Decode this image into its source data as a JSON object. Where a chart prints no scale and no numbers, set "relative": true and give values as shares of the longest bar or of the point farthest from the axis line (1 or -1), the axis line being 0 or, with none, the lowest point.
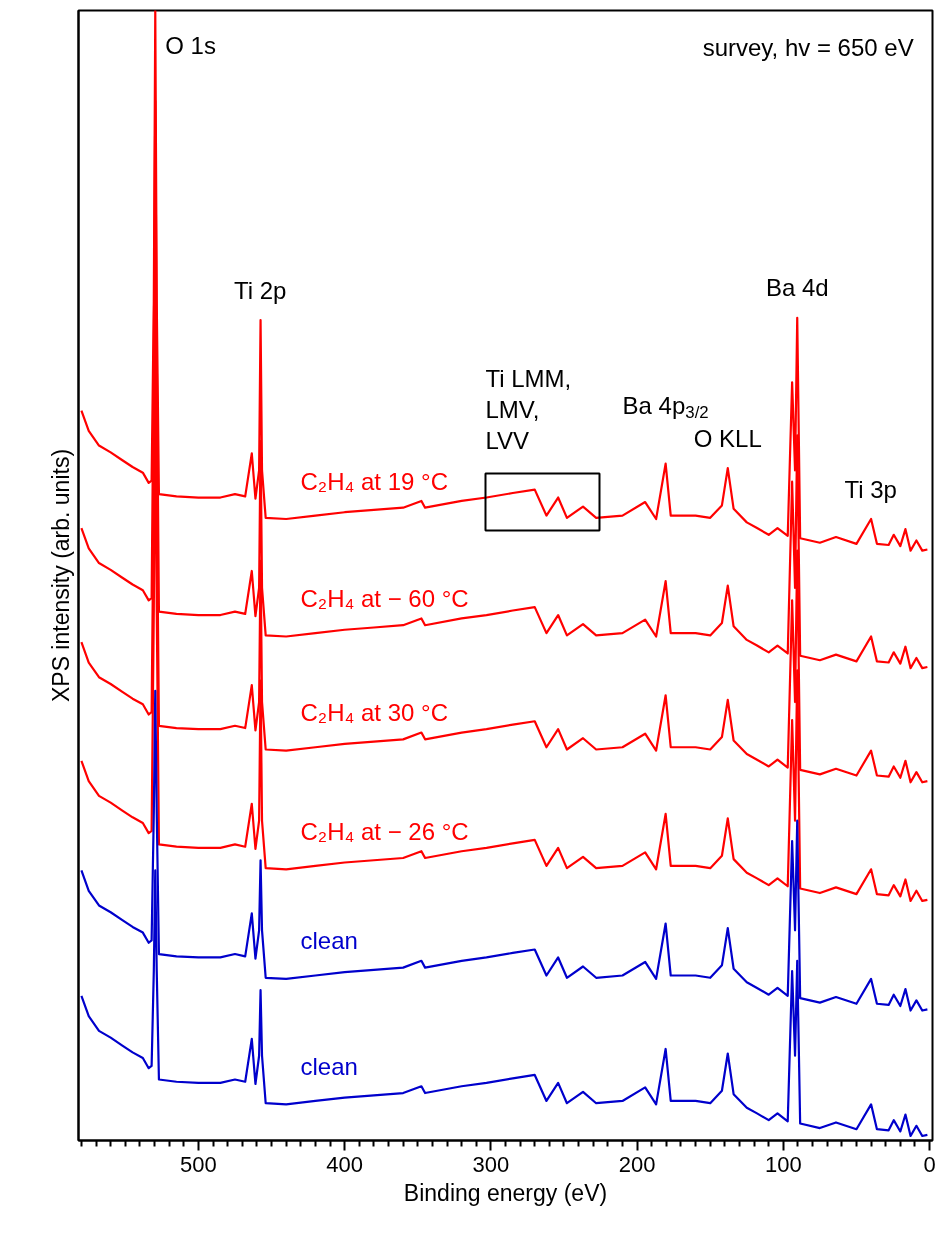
{
  "chart_data": {
    "type": "line",
    "relative": true,
    "xlabel": "Binding energy (eV)",
    "ylabel": "XPS intensity (arb. units)",
    "tick_labels": "x",
    "xlim": [
      582,
      -2
    ],
    "xticks": [
      0,
      100,
      200,
      300,
      400,
      500,
      {
        "value": 10,
        "label": null
      },
      {
        "value": 20,
        "label": null
      },
      {
        "value": 30,
        "label": null
      },
      {
        "value": 40,
        "label": null
      },
      {
        "value": 50,
        "label": null
      },
      {
        "value": 60,
        "label": null
      },
      {
        "value": 70,
        "label": null
      },
      {
        "value": 80,
        "label": null
      },
      {
        "value": 90,
        "label": null
      },
      {
        "value": 110,
        "label": null
      },
      {
        "value": 120,
        "label": null
      },
      {
        "value": 130,
        "label": null
      },
      {
        "value": 140,
        "label": null
      },
      {
        "value": 150,
        "label": null
      },
      {
        "value": 160,
        "label": null
      },
      {
        "value": 170,
        "label": null
      },
      {
        "value": 180,
        "label": null
      },
      {
        "value": 190,
        "label": null
      },
      {
        "value": 210,
        "label": null
      },
      {
        "value": 220,
        "label": null
      },
      {
        "value": 230,
        "label": null
      },
      {
        "value": 240,
        "label": null
      },
      {
        "value": 250,
        "label": null
      },
      {
        "value": 260,
        "label": null
      },
      {
        "value": 270,
        "label": null
      },
      {
        "value": 280,
        "label": null
      },
      {
        "value": 290,
        "label": null
      },
      {
        "value": 310,
        "label": null
      },
      {
        "value": 320,
        "label": null
      },
      {
        "value": 330,
        "label": null
      },
      {
        "value": 340,
        "label": null
      },
      {
        "value": 350,
        "label": null
      },
      {
        "value": 360,
        "label": null
      },
      {
        "value": 370,
        "label": null
      },
      {
        "value": 380,
        "label": null
      },
      {
        "value": 390,
        "label": null
      },
      {
        "value": 410,
        "label": null
      },
      {
        "value": 420,
        "label": null
      },
      {
        "value": 430,
        "label": null
      },
      {
        "value": 440,
        "label": null
      },
      {
        "value": 450,
        "label": null
      },
      {
        "value": 460,
        "label": null
      },
      {
        "value": 470,
        "label": null
      },
      {
        "value": 480,
        "label": null
      },
      {
        "value": 490,
        "label": null
      },
      {
        "value": 510,
        "label": null
      },
      {
        "value": 520,
        "label": null
      },
      {
        "value": 530,
        "label": null
      },
      {
        "value": 540,
        "label": null
      },
      {
        "value": 550,
        "label": null
      },
      {
        "value": 560,
        "label": null
      },
      {
        "value": 570,
        "label": null
      },
      {
        "value": 580,
        "label": null
      }
    ],
    "x": [
      580,
      575,
      568,
      560,
      552,
      545,
      538,
      534,
      532,
      530.5,
      529.5,
      528.5,
      527,
      515,
      500,
      485,
      475,
      468,
      463.5,
      461,
      458.5,
      457.5,
      456.5,
      454,
      440,
      420,
      400,
      380,
      360,
      347.5,
      345,
      320,
      303,
      285,
      270,
      262,
      254,
      248,
      237,
      228,
      210,
      194.5,
      187,
      180.5,
      177,
      160,
      150,
      142,
      138,
      134,
      125,
      118,
      110,
      104,
      97,
      94,
      92,
      90.5,
      88.5,
      75,
      64,
      50,
      40,
      36,
      28,
      24.5,
      20,
      16.5,
      13,
      9,
      5,
      1.5
    ],
    "series": [
      {
        "name": "C₂H₄ at 19 °C",
        "color": "#ff0000",
        "values": [
          0.646,
          0.628,
          0.615,
          0.609,
          0.602,
          0.596,
          0.591,
          0.582,
          0.584,
          0.743,
          1,
          0.743,
          0.572,
          0.57,
          0.569,
          0.569,
          0.572,
          0.57,
          0.608,
          0.568,
          0.593,
          0.726,
          0.593,
          0.551,
          0.55,
          0.553,
          0.556,
          0.558,
          0.56,
          0.566,
          0.56,
          0.566,
          0.569,
          0.573,
          0.576,
          0.553,
          0.569,
          0.551,
          0.561,
          0.551,
          0.553,
          0.565,
          0.55,
          0.599,
          0.553,
          0.553,
          0.551,
          0.562,
          0.595,
          0.559,
          0.547,
          0.542,
          0.536,
          0.542,
          0.535,
          0.671,
          0.593,
          0.728,
          0.533,
          0.529,
          0.534,
          0.528,
          0.55,
          0.528,
          0.527,
          0.536,
          0.526,
          0.541,
          0.522,
          0.531,
          0.522,
          0.523
        ]
      },
      {
        "name": "C₂H₄ at − 60 °C",
        "color": "#ff0000",
        "values": [
          0.542,
          0.524,
          0.511,
          0.505,
          0.498,
          0.492,
          0.487,
          0.478,
          0.48,
          0.7,
          0.92,
          0.7,
          0.468,
          0.466,
          0.465,
          0.465,
          0.468,
          0.466,
          0.504,
          0.464,
          0.489,
          0.619,
          0.489,
          0.447,
          0.446,
          0.449,
          0.452,
          0.454,
          0.456,
          0.462,
          0.456,
          0.462,
          0.465,
          0.469,
          0.472,
          0.449,
          0.465,
          0.447,
          0.457,
          0.447,
          0.449,
          0.461,
          0.446,
          0.495,
          0.449,
          0.449,
          0.447,
          0.458,
          0.491,
          0.455,
          0.443,
          0.438,
          0.432,
          0.438,
          0.431,
          0.583,
          0.489,
          0.624,
          0.429,
          0.425,
          0.43,
          0.424,
          0.446,
          0.424,
          0.423,
          0.432,
          0.422,
          0.437,
          0.418,
          0.427,
          0.418,
          0.419
        ]
      },
      {
        "name": "C₂H₄ at 30 °C",
        "color": "#ff0000",
        "values": [
          0.441,
          0.423,
          0.41,
          0.404,
          0.397,
          0.391,
          0.386,
          0.377,
          0.379,
          0.58,
          0.788,
          0.58,
          0.367,
          0.365,
          0.364,
          0.364,
          0.367,
          0.365,
          0.403,
          0.363,
          0.388,
          0.513,
          0.388,
          0.346,
          0.345,
          0.348,
          0.351,
          0.353,
          0.355,
          0.361,
          0.355,
          0.361,
          0.364,
          0.368,
          0.371,
          0.348,
          0.364,
          0.346,
          0.356,
          0.346,
          0.348,
          0.36,
          0.345,
          0.394,
          0.348,
          0.348,
          0.346,
          0.357,
          0.39,
          0.354,
          0.342,
          0.337,
          0.331,
          0.337,
          0.33,
          0.478,
          0.388,
          0.522,
          0.328,
          0.324,
          0.329,
          0.323,
          0.345,
          0.323,
          0.322,
          0.331,
          0.321,
          0.336,
          0.317,
          0.326,
          0.317,
          0.318
        ]
      },
      {
        "name": "C₂H₄ at − 26 °C",
        "color": "#ff0000",
        "values": [
          0.336,
          0.318,
          0.305,
          0.299,
          0.292,
          0.286,
          0.281,
          0.272,
          0.274,
          0.47,
          0.673,
          0.47,
          0.262,
          0.26,
          0.259,
          0.259,
          0.262,
          0.26,
          0.298,
          0.258,
          0.283,
          0.407,
          0.283,
          0.241,
          0.24,
          0.243,
          0.246,
          0.248,
          0.25,
          0.256,
          0.25,
          0.256,
          0.259,
          0.263,
          0.266,
          0.243,
          0.259,
          0.241,
          0.251,
          0.241,
          0.243,
          0.255,
          0.24,
          0.289,
          0.243,
          0.243,
          0.241,
          0.252,
          0.285,
          0.249,
          0.237,
          0.232,
          0.226,
          0.232,
          0.225,
          0.372,
          0.283,
          0.416,
          0.223,
          0.219,
          0.224,
          0.218,
          0.24,
          0.218,
          0.217,
          0.226,
          0.216,
          0.231,
          0.212,
          0.221,
          0.212,
          0.213
        ]
      },
      {
        "name": "clean",
        "color": "#0000cc",
        "values": [
          0.239,
          0.221,
          0.208,
          0.202,
          0.195,
          0.189,
          0.184,
          0.175,
          0.177,
          0.29,
          0.398,
          0.29,
          0.165,
          0.163,
          0.162,
          0.162,
          0.165,
          0.163,
          0.201,
          0.161,
          0.186,
          0.248,
          0.186,
          0.144,
          0.143,
          0.146,
          0.149,
          0.151,
          0.153,
          0.159,
          0.153,
          0.159,
          0.162,
          0.166,
          0.169,
          0.146,
          0.162,
          0.144,
          0.154,
          0.144,
          0.146,
          0.158,
          0.143,
          0.192,
          0.146,
          0.146,
          0.144,
          0.155,
          0.188,
          0.152,
          0.14,
          0.135,
          0.129,
          0.135,
          0.128,
          0.265,
          0.186,
          0.283,
          0.126,
          0.122,
          0.127,
          0.121,
          0.143,
          0.121,
          0.12,
          0.129,
          0.119,
          0.134,
          0.115,
          0.124,
          0.115,
          0.116
        ]
      },
      {
        "name": "clean",
        "color": "#0000cc",
        "values": [
          0.128,
          0.11,
          0.097,
          0.091,
          0.084,
          0.078,
          0.073,
          0.064,
          0.066,
          0.15,
          0.239,
          0.15,
          0.054,
          0.052,
          0.051,
          0.051,
          0.054,
          0.052,
          0.09,
          0.05,
          0.075,
          0.133,
          0.075,
          0.033,
          0.032,
          0.035,
          0.038,
          0.04,
          0.042,
          0.048,
          0.042,
          0.048,
          0.051,
          0.055,
          0.058,
          0.035,
          0.051,
          0.033,
          0.043,
          0.033,
          0.035,
          0.047,
          0.032,
          0.081,
          0.035,
          0.035,
          0.033,
          0.044,
          0.077,
          0.041,
          0.029,
          0.024,
          0.018,
          0.024,
          0.017,
          0.15,
          0.075,
          0.159,
          0.015,
          0.011,
          0.016,
          0.01,
          0.032,
          0.01,
          0.009,
          0.018,
          0.008,
          0.023,
          0.004,
          0.013,
          0.004,
          0.005
        ]
      }
    ],
    "annotations": [
      "survey, hv = 650 eV",
      {
        "text": "O 1s",
        "x": 529.5,
        "y": 1
      },
      {
        "text": "Ti 2p",
        "x": 457.5,
        "y": 0.726
      },
      {
        "text": "Ba 4d",
        "x": 90.5,
        "y": 0.728
      },
      {
        "text": "Ti LMM,\nLMV,\nLVV",
        "x": 264.7,
        "y": 0.565
      },
      {
        "text": "O KLL",
        "x": 138,
        "y": 0.595
      },
      {
        "text": "Ba 4p$_{3/2}$",
        "x": 180.5,
        "y": 0.599
      },
      {
        "text": "Ti 3p",
        "x": 40,
        "y": 0.55
      }
    ]
  }
}
